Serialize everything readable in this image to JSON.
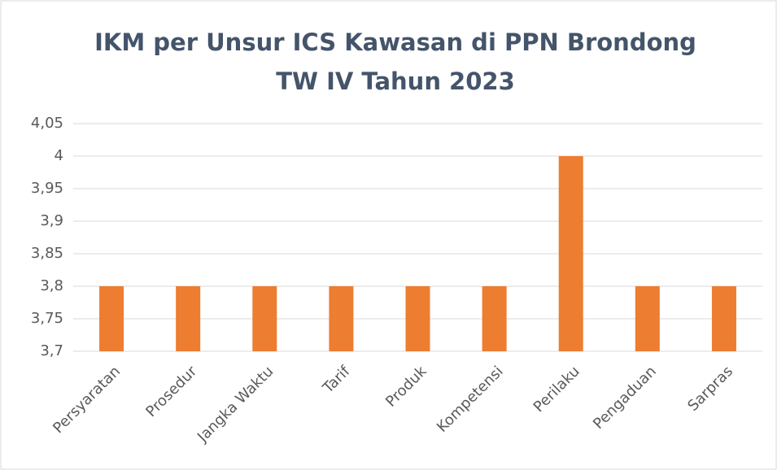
{
  "chart_data": {
    "type": "bar",
    "title": [
      "IKM per Unsur ICS Kawasan di PPN Brondong",
      "TW IV Tahun 2023"
    ],
    "categories": [
      "Persyaratan",
      "Prosedur",
      "Jangka Waktu",
      "Tarif",
      "Produk",
      "Kompetensi",
      "Perilaku",
      "Pengaduan",
      "Sarpras"
    ],
    "values": [
      3.8,
      3.8,
      3.8,
      3.8,
      3.8,
      3.8,
      4,
      3.8,
      3.8
    ],
    "color": "#ed7d31",
    "ylim": [
      3.7,
      4.05
    ],
    "yticks": [
      {
        "value": 3.7,
        "label": "3,7"
      },
      {
        "value": 3.75,
        "label": "3,75"
      },
      {
        "value": 3.8,
        "label": "3,8"
      },
      {
        "value": 3.85,
        "label": "3,85"
      },
      {
        "value": 3.9,
        "label": "3,9"
      },
      {
        "value": 3.95,
        "label": "3,95"
      },
      4,
      {
        "value": 4.05,
        "label": "4,05"
      }
    ],
    "grid": true
  }
}
